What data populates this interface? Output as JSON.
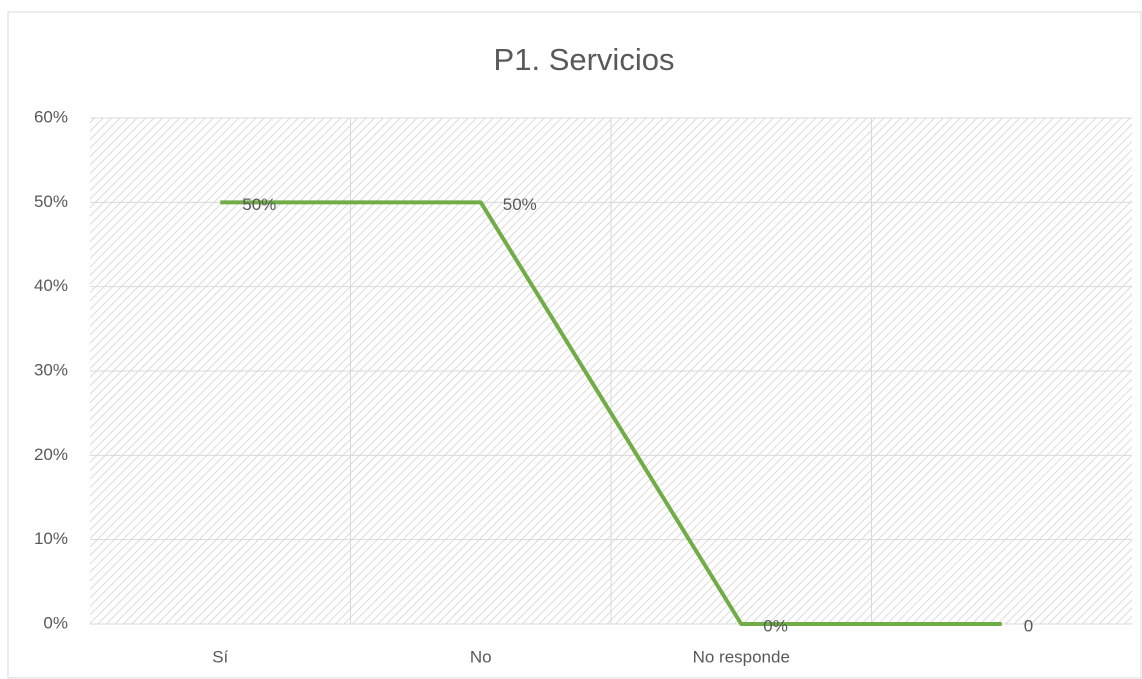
{
  "chart_data": {
    "type": "line",
    "title": "P1. Servicios",
    "categories": [
      "Sí",
      "No",
      "No responde",
      null
    ],
    "series": [
      {
        "color": "#70ad47",
        "values": [
          50,
          50,
          0,
          0
        ],
        "value_labels": [
          "50%",
          "50%",
          "0%",
          "0"
        ]
      }
    ],
    "ylim": [
      0,
      60
    ],
    "yticks": [
      {
        "value": 0,
        "label": "0%"
      },
      {
        "value": 10,
        "label": "10%"
      },
      {
        "value": 20,
        "label": "20%"
      },
      {
        "value": 30,
        "label": "30%"
      },
      {
        "value": 40,
        "label": "40%"
      },
      {
        "value": 50,
        "label": "50%"
      },
      {
        "value": 60,
        "label": "60%"
      }
    ],
    "grid": true
  }
}
